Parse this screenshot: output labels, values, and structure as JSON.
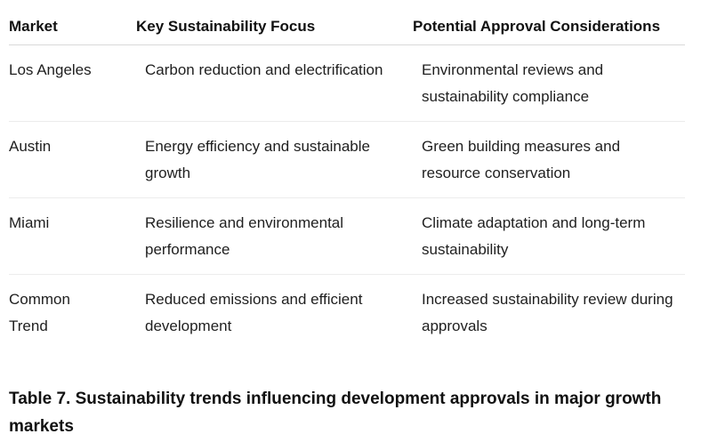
{
  "table": {
    "headers": [
      "Market",
      "Key Sustainability Focus",
      "Potential Approval Considerations"
    ],
    "rows": [
      [
        "Los Angeles",
        "Carbon reduction and electrification",
        "Environmental reviews and sustainability compliance"
      ],
      [
        "Austin",
        "Energy efficiency and sustainable growth",
        "Green building measures and resource conservation"
      ],
      [
        "Miami",
        "Resilience and environmental performance",
        "Climate adaptation and long-term sustainability"
      ],
      [
        "Common Trend",
        "Reduced emissions and efficient development",
        "Increased sustainability review during approvals"
      ]
    ]
  },
  "caption": "Table 7. Sustainability trends influencing development approvals in major growth markets"
}
